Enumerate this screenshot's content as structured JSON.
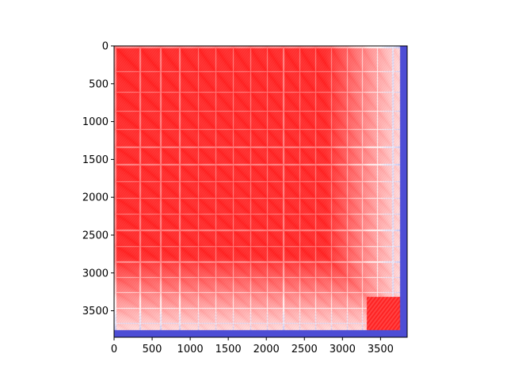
{
  "chart_data": {
    "type": "heatmap",
    "title": "",
    "xlabel": "",
    "ylabel": "",
    "xlim": [
      0,
      3850
    ],
    "ylim": [
      3850,
      0
    ],
    "x_ticks": [
      "0",
      "500",
      "1000",
      "1500",
      "2000",
      "2500",
      "3000",
      "3500"
    ],
    "y_ticks": [
      "0",
      "500",
      "1000",
      "1500",
      "2000",
      "2500",
      "3000",
      "3500"
    ],
    "colormap": "seismic",
    "colors": {
      "low": "#0000cc",
      "mid": "#ffffff",
      "high": "#ff0000"
    },
    "grid": false,
    "legend": "none",
    "description_of_values": "matrix of values, mostly high (red) with a block pattern; lower (white/blue) near right and bottom edges"
  }
}
